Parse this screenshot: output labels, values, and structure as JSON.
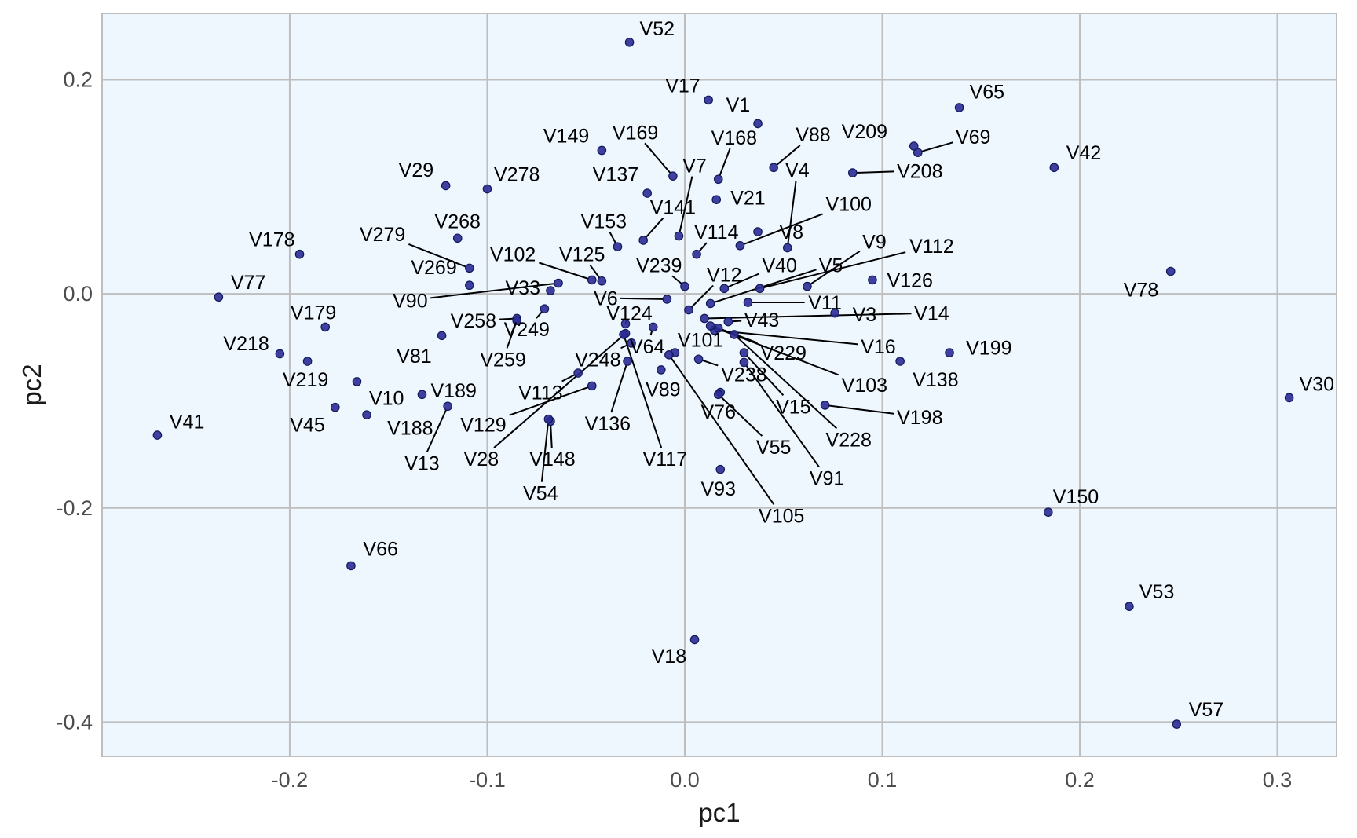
{
  "chart_data": {
    "type": "scatter",
    "xlabel": "pc1",
    "ylabel": "pc2",
    "xlim": [
      -0.295,
      0.33
    ],
    "ylim": [
      -0.432,
      0.262
    ],
    "x_ticks": [
      -0.2,
      -0.1,
      0.0,
      0.1,
      0.2,
      0.3
    ],
    "x_tick_labels": [
      "-0.2",
      "-0.1",
      "0.0",
      "0.1",
      "0.2",
      "0.3"
    ],
    "y_ticks": [
      -0.4,
      -0.2,
      0.0,
      0.2
    ],
    "y_tick_labels": [
      "-0.4",
      "-0.2",
      "0.0",
      "0.2"
    ],
    "grid": true,
    "colors": {
      "panel": "#eef6fe",
      "point": "#2b2b95",
      "grid": "#bebebe",
      "label": "#000000",
      "leader": "#000000"
    },
    "points": [
      {
        "label": "V52",
        "x": -0.028,
        "y": 0.235,
        "lx": -0.014,
        "ly": 0.248
      },
      {
        "label": "V17",
        "x": 0.012,
        "y": 0.181,
        "lx": -0.001,
        "ly": 0.195
      },
      {
        "label": "V1",
        "x": 0.037,
        "y": 0.159,
        "lx": 0.027,
        "ly": 0.177
      },
      {
        "label": "V65",
        "x": 0.139,
        "y": 0.174,
        "lx": 0.153,
        "ly": 0.189
      },
      {
        "label": "V209",
        "x": 0.116,
        "y": 0.138,
        "lx": 0.091,
        "ly": 0.152
      },
      {
        "label": "V69",
        "x": 0.118,
        "y": 0.132,
        "lx": 0.146,
        "ly": 0.147,
        "leader": true
      },
      {
        "label": "V88",
        "x": 0.045,
        "y": 0.118,
        "lx": 0.065,
        "ly": 0.149,
        "leader": true
      },
      {
        "label": "V42",
        "x": 0.187,
        "y": 0.118,
        "lx": 0.202,
        "ly": 0.132
      },
      {
        "label": "V208",
        "x": 0.085,
        "y": 0.113,
        "lx": 0.119,
        "ly": 0.115,
        "leader": true
      },
      {
        "label": "V149",
        "x": -0.042,
        "y": 0.134,
        "lx": -0.06,
        "ly": 0.148
      },
      {
        "label": "V169",
        "x": -0.006,
        "y": 0.11,
        "lx": -0.025,
        "ly": 0.151,
        "leader": true
      },
      {
        "label": "V168",
        "x": 0.017,
        "y": 0.107,
        "lx": 0.025,
        "ly": 0.146,
        "leader": true
      },
      {
        "label": "V7",
        "x": -0.003,
        "y": 0.054,
        "lx": 0.005,
        "ly": 0.12,
        "leader": true
      },
      {
        "label": "V4",
        "x": 0.052,
        "y": 0.043,
        "lx": 0.057,
        "ly": 0.116,
        "leader": true
      },
      {
        "label": "V137",
        "x": -0.019,
        "y": 0.094,
        "lx": -0.035,
        "ly": 0.112
      },
      {
        "label": "V21",
        "x": 0.016,
        "y": 0.088,
        "lx": 0.032,
        "ly": 0.09
      },
      {
        "label": "V100",
        "x": 0.028,
        "y": 0.045,
        "lx": 0.083,
        "ly": 0.084,
        "leader": true
      },
      {
        "label": "V141",
        "x": -0.021,
        "y": 0.05,
        "lx": -0.006,
        "ly": 0.081,
        "leader": true
      },
      {
        "label": "V29",
        "x": -0.121,
        "y": 0.101,
        "lx": -0.136,
        "ly": 0.116
      },
      {
        "label": "V278",
        "x": -0.1,
        "y": 0.098,
        "lx": -0.085,
        "ly": 0.112
      },
      {
        "label": "V153",
        "x": -0.034,
        "y": 0.044,
        "lx": -0.041,
        "ly": 0.068,
        "leader": true
      },
      {
        "label": "V114",
        "x": 0.006,
        "y": 0.037,
        "lx": 0.016,
        "ly": 0.058,
        "leader": true
      },
      {
        "label": "V8",
        "x": 0.037,
        "y": 0.058,
        "lx": 0.054,
        "ly": 0.058
      },
      {
        "label": "V268",
        "x": -0.115,
        "y": 0.052,
        "lx": -0.115,
        "ly": 0.068
      },
      {
        "label": "V279",
        "x": -0.109,
        "y": 0.024,
        "lx": -0.153,
        "ly": 0.056,
        "leader": true
      },
      {
        "label": "V178",
        "x": -0.195,
        "y": 0.037,
        "lx": -0.209,
        "ly": 0.051
      },
      {
        "label": "V9",
        "x": 0.062,
        "y": 0.007,
        "lx": 0.096,
        "ly": 0.049,
        "leader": true
      },
      {
        "label": "V112",
        "x": 0.038,
        "y": 0.005,
        "lx": 0.125,
        "ly": 0.045,
        "leader": true
      },
      {
        "label": "V102",
        "x": -0.047,
        "y": 0.013,
        "lx": -0.087,
        "ly": 0.037,
        "leader": true
      },
      {
        "label": "V125",
        "x": -0.042,
        "y": 0.012,
        "lx": -0.052,
        "ly": 0.037,
        "leader": true
      },
      {
        "label": "V239",
        "x": 0.0,
        "y": 0.007,
        "lx": -0.013,
        "ly": 0.027,
        "leader": true
      },
      {
        "label": "V40",
        "x": 0.02,
        "y": 0.005,
        "lx": 0.048,
        "ly": 0.027,
        "leader": true
      },
      {
        "label": "V5",
        "x": 0.013,
        "y": -0.009,
        "lx": 0.074,
        "ly": 0.027,
        "leader": true
      },
      {
        "label": "V269",
        "x": -0.109,
        "y": 0.008,
        "lx": -0.127,
        "ly": 0.025
      },
      {
        "label": "V12",
        "x": 0.002,
        "y": -0.015,
        "lx": 0.02,
        "ly": 0.018,
        "leader": true
      },
      {
        "label": "V126",
        "x": 0.095,
        "y": 0.013,
        "lx": 0.114,
        "ly": 0.013
      },
      {
        "label": "V78",
        "x": 0.246,
        "y": 0.021,
        "lx": 0.231,
        "ly": 0.004
      },
      {
        "label": "V77",
        "x": -0.236,
        "y": -0.003,
        "lx": -0.221,
        "ly": 0.011
      },
      {
        "label": "V33",
        "x": -0.068,
        "y": 0.003,
        "lx": -0.082,
        "ly": 0.006
      },
      {
        "label": "V90",
        "x": -0.064,
        "y": 0.01,
        "lx": -0.139,
        "ly": -0.006,
        "leader": true
      },
      {
        "label": "V6",
        "x": -0.009,
        "y": -0.005,
        "lx": -0.04,
        "ly": -0.004,
        "leader": true
      },
      {
        "label": "V11",
        "x": 0.032,
        "y": -0.008,
        "lx": 0.071,
        "ly": -0.008,
        "leader": true
      },
      {
        "label": "V3",
        "x": 0.076,
        "y": -0.018,
        "lx": 0.091,
        "ly": -0.019
      },
      {
        "label": "V14",
        "x": 0.01,
        "y": -0.023,
        "lx": 0.125,
        "ly": -0.018,
        "leader": true
      },
      {
        "label": "V258",
        "x": -0.085,
        "y": -0.023,
        "lx": -0.107,
        "ly": -0.025,
        "leader": true
      },
      {
        "label": "V179",
        "x": -0.182,
        "y": -0.031,
        "lx": -0.188,
        "ly": -0.017
      },
      {
        "label": "V124",
        "x": -0.03,
        "y": -0.028,
        "lx": -0.028,
        "ly": -0.018,
        "leader": true
      },
      {
        "label": "V43",
        "x": 0.022,
        "y": -0.026,
        "lx": 0.039,
        "ly": -0.024,
        "leader": true
      },
      {
        "label": "V249",
        "x": -0.071,
        "y": -0.014,
        "lx": -0.08,
        "ly": -0.033,
        "leader": true
      },
      {
        "label": "V16",
        "x": 0.015,
        "y": -0.034,
        "lx": 0.098,
        "ly": -0.049,
        "leader": true
      },
      {
        "label": "V101",
        "x": -0.005,
        "y": -0.055,
        "lx": 0.008,
        "ly": -0.043,
        "leader": true
      },
      {
        "label": "V229",
        "x": 0.017,
        "y": -0.032,
        "lx": 0.05,
        "ly": -0.055,
        "leader": true
      },
      {
        "label": "V218",
        "x": -0.205,
        "y": -0.056,
        "lx": -0.222,
        "ly": -0.046
      },
      {
        "label": "V64",
        "x": -0.016,
        "y": -0.031,
        "lx": -0.019,
        "ly": -0.049,
        "leader": true
      },
      {
        "label": "V199",
        "x": 0.134,
        "y": -0.055,
        "lx": 0.154,
        "ly": -0.05
      },
      {
        "label": "V81",
        "x": -0.123,
        "y": -0.039,
        "lx": -0.137,
        "ly": -0.058
      },
      {
        "label": "V248",
        "x": -0.027,
        "y": -0.046,
        "lx": -0.044,
        "ly": -0.061,
        "leader": true
      },
      {
        "label": "V259",
        "x": -0.085,
        "y": -0.025,
        "lx": -0.092,
        "ly": -0.061,
        "leader": true
      },
      {
        "label": "V103",
        "x": 0.013,
        "y": -0.03,
        "lx": 0.091,
        "ly": -0.085,
        "leader": true
      },
      {
        "label": "V138",
        "x": 0.109,
        "y": -0.063,
        "lx": 0.127,
        "ly": -0.08
      },
      {
        "label": "V238",
        "x": 0.007,
        "y": -0.061,
        "lx": 0.03,
        "ly": -0.075,
        "leader": true
      },
      {
        "label": "V219",
        "x": -0.191,
        "y": -0.063,
        "lx": -0.192,
        "ly": -0.08
      },
      {
        "label": "V113",
        "x": -0.054,
        "y": -0.074,
        "lx": -0.073,
        "ly": -0.092,
        "leader": true
      },
      {
        "label": "V89",
        "x": -0.012,
        "y": -0.071,
        "lx": -0.011,
        "ly": -0.089
      },
      {
        "label": "V10",
        "x": -0.166,
        "y": -0.082,
        "lx": -0.151,
        "ly": -0.097
      },
      {
        "label": "V189",
        "x": -0.133,
        "y": -0.094,
        "lx": -0.117,
        "ly": -0.09
      },
      {
        "label": "V15",
        "x": 0.03,
        "y": -0.055,
        "lx": 0.055,
        "ly": -0.105,
        "leader": true
      },
      {
        "label": "V76",
        "x": 0.018,
        "y": -0.092,
        "lx": 0.017,
        "ly": -0.11
      },
      {
        "label": "V198",
        "x": 0.071,
        "y": -0.104,
        "lx": 0.119,
        "ly": -0.115,
        "leader": true
      },
      {
        "label": "V41",
        "x": -0.267,
        "y": -0.132,
        "lx": -0.252,
        "ly": -0.119
      },
      {
        "label": "V45",
        "x": -0.177,
        "y": -0.106,
        "lx": -0.191,
        "ly": -0.122
      },
      {
        "label": "V188",
        "x": -0.161,
        "y": -0.113,
        "lx": -0.139,
        "ly": -0.125
      },
      {
        "label": "V129",
        "x": -0.047,
        "y": -0.086,
        "lx": -0.102,
        "ly": -0.122,
        "leader": true
      },
      {
        "label": "V136",
        "x": -0.029,
        "y": -0.063,
        "lx": -0.039,
        "ly": -0.121,
        "leader": true
      },
      {
        "label": "V228",
        "x": 0.025,
        "y": -0.038,
        "lx": 0.083,
        "ly": -0.136,
        "leader": true
      },
      {
        "label": "V55",
        "x": 0.017,
        "y": -0.094,
        "lx": 0.045,
        "ly": -0.143,
        "leader": true
      },
      {
        "label": "V28",
        "x": -0.03,
        "y": -0.037,
        "lx": -0.103,
        "ly": -0.154,
        "leader": true
      },
      {
        "label": "V148",
        "x": -0.068,
        "y": -0.119,
        "lx": -0.067,
        "ly": -0.154,
        "leader": true
      },
      {
        "label": "V117",
        "x": -0.031,
        "y": -0.038,
        "lx": -0.01,
        "ly": -0.154,
        "leader": true
      },
      {
        "label": "V13",
        "x": -0.12,
        "y": -0.105,
        "lx": -0.133,
        "ly": -0.158,
        "leader": true
      },
      {
        "label": "V91",
        "x": 0.03,
        "y": -0.064,
        "lx": 0.072,
        "ly": -0.172,
        "leader": true
      },
      {
        "label": "V93",
        "x": 0.018,
        "y": -0.164,
        "lx": 0.017,
        "ly": -0.182
      },
      {
        "label": "V54",
        "x": -0.069,
        "y": -0.117,
        "lx": -0.073,
        "ly": -0.186,
        "leader": true
      },
      {
        "label": "V105",
        "x": -0.008,
        "y": -0.057,
        "lx": 0.049,
        "ly": -0.207,
        "leader": true
      },
      {
        "label": "V150",
        "x": 0.184,
        "y": -0.204,
        "lx": 0.198,
        "ly": -0.189
      },
      {
        "label": "V66",
        "x": -0.169,
        "y": -0.254,
        "lx": -0.154,
        "ly": -0.238
      },
      {
        "label": "V53",
        "x": 0.225,
        "y": -0.292,
        "lx": 0.239,
        "ly": -0.278
      },
      {
        "label": "V18",
        "x": 0.005,
        "y": -0.323,
        "lx": -0.008,
        "ly": -0.338
      },
      {
        "label": "V30",
        "x": 0.306,
        "y": -0.097,
        "lx": 0.32,
        "ly": -0.084
      },
      {
        "label": "V57",
        "x": 0.249,
        "y": -0.402,
        "lx": 0.264,
        "ly": -0.388
      }
    ]
  }
}
